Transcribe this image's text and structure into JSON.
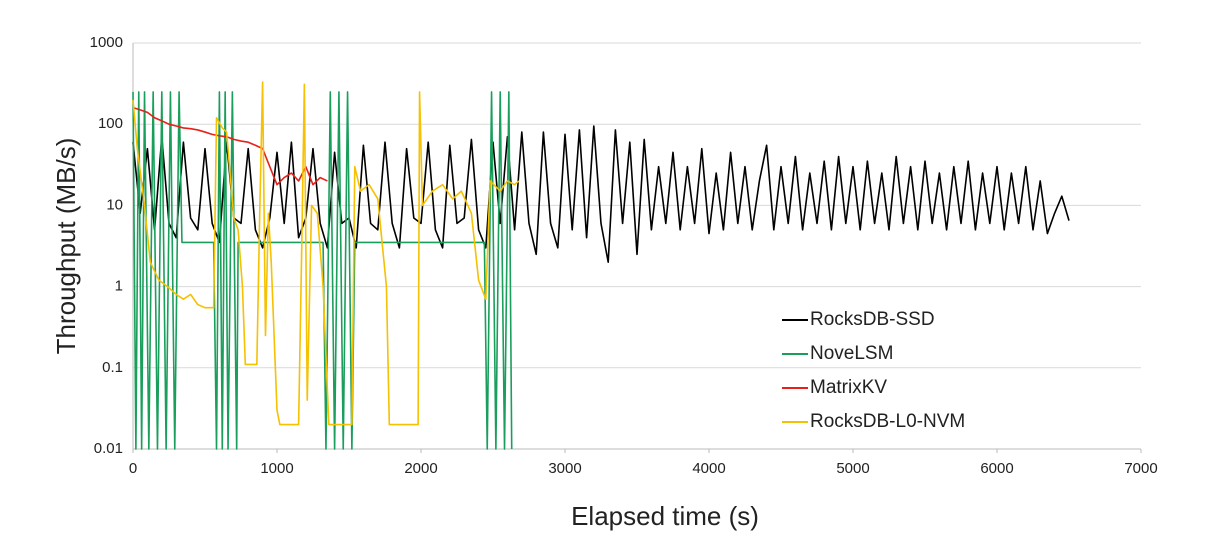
{
  "chart_data": {
    "type": "line",
    "x_label": "Elapsed time (s)",
    "y_label": "Throughput (MB/s)",
    "y_scale": "log",
    "grid": true,
    "legend": "lower-center",
    "xlim": [
      0,
      7000
    ],
    "xticks": [
      0,
      1000,
      2000,
      3000,
      4000,
      5000,
      6000,
      7000
    ],
    "ylim": [
      0.01,
      1000
    ],
    "yticks": [
      0.01,
      0.1,
      1,
      10,
      100,
      1000
    ],
    "series": [
      {
        "name": "RocksDB-SSD",
        "color": "#000000",
        "x": [
          0,
          50,
          100,
          150,
          200,
          250,
          300,
          350,
          400,
          450,
          500,
          550,
          600,
          650,
          700,
          750,
          800,
          850,
          900,
          950,
          1000,
          1050,
          1100,
          1150,
          1200,
          1250,
          1300,
          1350,
          1400,
          1450,
          1500,
          1550,
          1600,
          1650,
          1700,
          1750,
          1800,
          1850,
          1900,
          1950,
          2000,
          2050,
          2100,
          2150,
          2200,
          2250,
          2300,
          2350,
          2400,
          2450,
          2500,
          2550,
          2600,
          2650,
          2700,
          2750,
          2800,
          2850,
          2900,
          2950,
          3000,
          3050,
          3100,
          3150,
          3200,
          3250,
          3300,
          3350,
          3400,
          3450,
          3500,
          3550,
          3600,
          3650,
          3700,
          3750,
          3800,
          3850,
          3900,
          3950,
          4000,
          4050,
          4100,
          4150,
          4200,
          4250,
          4300,
          4350,
          4400,
          4450,
          4500,
          4550,
          4600,
          4650,
          4700,
          4750,
          4800,
          4850,
          4900,
          4950,
          5000,
          5050,
          5100,
          5150,
          5200,
          5250,
          5300,
          5350,
          5400,
          5450,
          5500,
          5550,
          5600,
          5650,
          5700,
          5750,
          5800,
          5850,
          5900,
          5950,
          6000,
          6050,
          6100,
          6150,
          6200,
          6250,
          6300,
          6350,
          6400,
          6450,
          6500
        ],
        "values": [
          60,
          8,
          50,
          5,
          70,
          6,
          4,
          60,
          7,
          5,
          50,
          6,
          3.5,
          60,
          7,
          6,
          50,
          5,
          3,
          7,
          45,
          6,
          60,
          4,
          7,
          50,
          6,
          3,
          45,
          6,
          7,
          3,
          55,
          6,
          5,
          60,
          6,
          3,
          50,
          7,
          6,
          60,
          5,
          3,
          55,
          6,
          7,
          65,
          5,
          3,
          60,
          6,
          70,
          5,
          80,
          6,
          2.5,
          80,
          6,
          3,
          75,
          5,
          85,
          4,
          95,
          6,
          2,
          85,
          6,
          60,
          2.5,
          65,
          5,
          30,
          6,
          45,
          5,
          30,
          6,
          50,
          4.5,
          25,
          5,
          45,
          6,
          30,
          5,
          20,
          55,
          5,
          30,
          6,
          40,
          5,
          25,
          6,
          35,
          5,
          40,
          6,
          30,
          5,
          35,
          6,
          25,
          5,
          40,
          6,
          30,
          5,
          35,
          6,
          25,
          5,
          30,
          6,
          35,
          5,
          25,
          6,
          30,
          5,
          25,
          6,
          30,
          5,
          20,
          4.5,
          8,
          13,
          6.5
        ]
      },
      {
        "name": "NoveLSM",
        "color": "#1a9e5c",
        "x": [
          0,
          20,
          40,
          60,
          80,
          110,
          140,
          170,
          200,
          230,
          260,
          290,
          320,
          340,
          560,
          580,
          600,
          620,
          640,
          660,
          690,
          720,
          730,
          1320,
          1340,
          1370,
          1400,
          1430,
          1460,
          1490,
          1520,
          1540,
          2440,
          2460,
          2490,
          2520,
          2550,
          2580,
          2610,
          2630
        ],
        "values": [
          250,
          0.01,
          250,
          0.01,
          250,
          0.01,
          250,
          0.01,
          250,
          0.01,
          250,
          0.01,
          250,
          3.5,
          3.5,
          0.01,
          250,
          0.01,
          250,
          0.01,
          250,
          0.01,
          3.5,
          3.5,
          0.01,
          250,
          0.01,
          250,
          0.01,
          250,
          0.01,
          3.5,
          3.5,
          0.01,
          250,
          0.01,
          250,
          0.01,
          250,
          0.01
        ]
      },
      {
        "name": "MatrixKV",
        "color": "#e8201a",
        "x": [
          0,
          50,
          100,
          150,
          200,
          250,
          300,
          350,
          400,
          450,
          500,
          550,
          600,
          650,
          700,
          750,
          800,
          850,
          900,
          950,
          1000,
          1050,
          1100,
          1150,
          1200,
          1250,
          1300,
          1350
        ],
        "values": [
          160,
          150,
          140,
          120,
          110,
          100,
          95,
          90,
          88,
          85,
          80,
          75,
          72,
          70,
          65,
          62,
          60,
          55,
          50,
          30,
          18,
          22,
          25,
          20,
          30,
          18,
          22,
          20
        ]
      },
      {
        "name": "RocksDB-L0-NVM",
        "color": "#f5c100",
        "x": [
          0,
          30,
          80,
          120,
          180,
          240,
          300,
          350,
          400,
          450,
          500,
          560,
          580,
          620,
          650,
          700,
          730,
          760,
          780,
          860,
          880,
          900,
          920,
          940,
          960,
          1000,
          1020,
          1150,
          1170,
          1190,
          1210,
          1240,
          1280,
          1320,
          1360,
          1520,
          1540,
          1580,
          1640,
          1700,
          1760,
          1780,
          1980,
          1990,
          2010,
          2080,
          2150,
          2220,
          2280,
          2350,
          2400,
          2450,
          2480,
          2550,
          2600,
          2650,
          2680
        ],
        "values": [
          200,
          50,
          10,
          2,
          1.2,
          1,
          0.8,
          0.7,
          0.8,
          0.6,
          0.55,
          0.55,
          120,
          90,
          80,
          7,
          5,
          1,
          0.11,
          0.11,
          8,
          330,
          0.25,
          8,
          2,
          0.03,
          0.02,
          0.02,
          2,
          310,
          0.04,
          10,
          8,
          1,
          0.02,
          0.02,
          30,
          15,
          18,
          12,
          1,
          0.02,
          0.02,
          250,
          10,
          15,
          18,
          12,
          15,
          8,
          1.2,
          0.7,
          20,
          15,
          20,
          18,
          20
        ]
      }
    ]
  }
}
